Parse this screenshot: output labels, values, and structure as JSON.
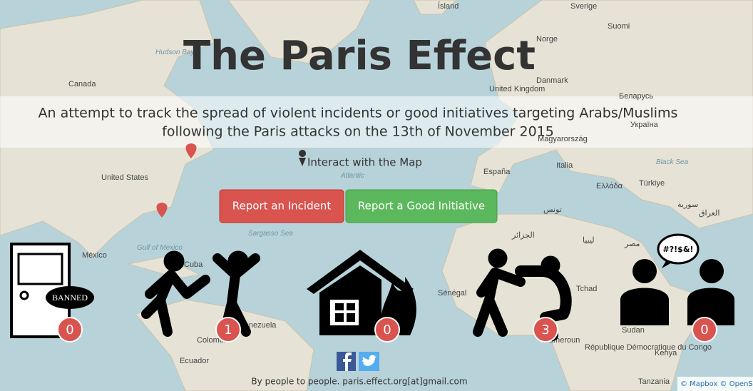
{
  "header": {
    "title": "The Paris Effect",
    "subtitle_lines": [
      "An attempt to track the spread of violent incidents or good initiatives targeting Arabs/Muslims",
      "following the Paris attacks on the 13th of November 2015"
    ]
  },
  "interact_label": "Interact with the Map",
  "buttons": [
    "Report an Incident",
    "Report a Good Initiative"
  ],
  "incidents": [
    {
      "count": 0,
      "sign": "BANNED"
    },
    {
      "count": 1
    },
    {
      "count": 0
    },
    {
      "count": 3
    },
    {
      "count": 0,
      "sign": "#?!$&!"
    }
  ],
  "footer": "By people to people. paris.effect.org[at]gmail.com",
  "attribution": "© Mapbox © OpenSt",
  "map_labels": [
    "Ísland",
    "Sverige",
    "Suomi",
    "Norge",
    "Hudson Bay",
    "Canada",
    "United Kingdom",
    "Danmark",
    "Беларусь",
    "Україна",
    "Magyarország",
    "España",
    "Italia",
    "Black Sea",
    "Ελλάδα",
    "Türkiye",
    "سورية",
    "العراق",
    "Atlantic",
    "United States",
    "México",
    "Sargasso Sea",
    "Gulf of Mexico",
    "Cuba",
    "تونس",
    "الجزائر",
    "ليبيا",
    "مصر",
    "Tchad",
    "Sénégal",
    "Venezuela",
    "Colombia",
    "Ecuador",
    "Sudan",
    "Kenya",
    "Tanzania",
    "Cameroun",
    "République Démocratique du Congo"
  ]
}
